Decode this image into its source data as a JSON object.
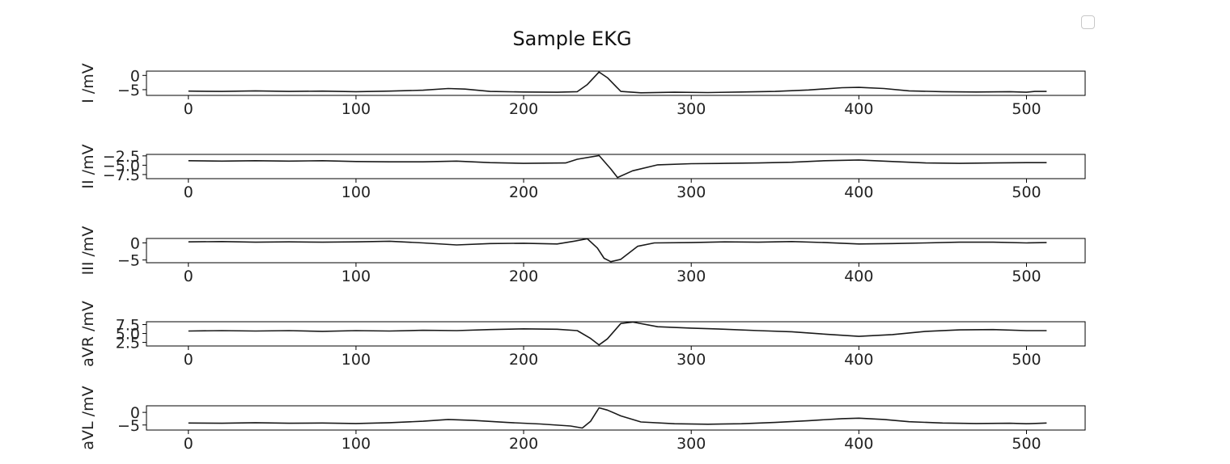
{
  "figure": {
    "title": "Sample EKG",
    "legend_checkbox_checked": false
  },
  "chart_data": [
    {
      "type": "line",
      "name": "I /mV",
      "ylabel": "I /mV",
      "xlim": [
        -25,
        535
      ],
      "ylim": [
        -7,
        1.5
      ],
      "yticks": [
        0,
        -5
      ],
      "ytick_labels": [
        "0",
        "−5"
      ],
      "xticks": [
        0,
        100,
        200,
        300,
        400,
        500
      ],
      "xtick_labels": [
        "0",
        "100",
        "200",
        "300",
        "400",
        "500"
      ],
      "color": "#1a1a1a",
      "points": [
        [
          0,
          -5.5
        ],
        [
          20,
          -5.6
        ],
        [
          40,
          -5.4
        ],
        [
          60,
          -5.6
        ],
        [
          80,
          -5.5
        ],
        [
          100,
          -5.7
        ],
        [
          120,
          -5.5
        ],
        [
          140,
          -5.2
        ],
        [
          155,
          -4.6
        ],
        [
          165,
          -4.8
        ],
        [
          180,
          -5.6
        ],
        [
          200,
          -5.8
        ],
        [
          220,
          -5.9
        ],
        [
          232,
          -5.7
        ],
        [
          238,
          -3.2
        ],
        [
          245,
          1.2
        ],
        [
          250,
          -0.8
        ],
        [
          258,
          -5.6
        ],
        [
          270,
          -6.1
        ],
        [
          290,
          -5.9
        ],
        [
          310,
          -6.0
        ],
        [
          330,
          -5.8
        ],
        [
          350,
          -5.6
        ],
        [
          370,
          -5.1
        ],
        [
          390,
          -4.3
        ],
        [
          400,
          -4.2
        ],
        [
          415,
          -4.6
        ],
        [
          430,
          -5.4
        ],
        [
          450,
          -5.7
        ],
        [
          470,
          -5.8
        ],
        [
          490,
          -5.7
        ],
        [
          500,
          -5.9
        ],
        [
          505,
          -5.6
        ],
        [
          512,
          -5.6
        ]
      ]
    },
    {
      "type": "line",
      "name": "II /mV",
      "ylabel": "II /mV",
      "xlim": [
        -25,
        535
      ],
      "ylim": [
        -8.6,
        -2.1
      ],
      "yticks": [
        -2.5,
        -5.0,
        -7.5
      ],
      "ytick_labels": [
        "−2.5",
        "−5.0",
        "−7.5"
      ],
      "xticks": [
        0,
        100,
        200,
        300,
        400,
        500
      ],
      "xtick_labels": [
        "0",
        "100",
        "200",
        "300",
        "400",
        "500"
      ],
      "color": "#1a1a1a",
      "points": [
        [
          0,
          -3.8
        ],
        [
          20,
          -3.9
        ],
        [
          40,
          -3.8
        ],
        [
          60,
          -3.9
        ],
        [
          80,
          -3.8
        ],
        [
          100,
          -4.0
        ],
        [
          120,
          -4.1
        ],
        [
          140,
          -4.1
        ],
        [
          160,
          -3.9
        ],
        [
          180,
          -4.3
        ],
        [
          200,
          -4.5
        ],
        [
          225,
          -4.4
        ],
        [
          232,
          -3.4
        ],
        [
          245,
          -2.4
        ],
        [
          252,
          -6.0
        ],
        [
          256,
          -8.3
        ],
        [
          265,
          -6.5
        ],
        [
          280,
          -4.9
        ],
        [
          300,
          -4.6
        ],
        [
          320,
          -4.5
        ],
        [
          340,
          -4.4
        ],
        [
          360,
          -4.2
        ],
        [
          380,
          -3.8
        ],
        [
          400,
          -3.6
        ],
        [
          420,
          -4.0
        ],
        [
          440,
          -4.4
        ],
        [
          460,
          -4.5
        ],
        [
          480,
          -4.4
        ],
        [
          500,
          -4.3
        ],
        [
          512,
          -4.3
        ]
      ]
    },
    {
      "type": "line",
      "name": "III /mV",
      "ylabel": "III /mV",
      "xlim": [
        -25,
        535
      ],
      "ylim": [
        -5.8,
        1.3
      ],
      "yticks": [
        0,
        -5
      ],
      "ytick_labels": [
        "0",
        "−5"
      ],
      "xticks": [
        0,
        100,
        200,
        300,
        400,
        500
      ],
      "xtick_labels": [
        "0",
        "100",
        "200",
        "300",
        "400",
        "500"
      ],
      "color": "#1a1a1a",
      "points": [
        [
          0,
          0.3
        ],
        [
          20,
          0.4
        ],
        [
          40,
          0.2
        ],
        [
          60,
          0.3
        ],
        [
          80,
          0.2
        ],
        [
          100,
          0.3
        ],
        [
          120,
          0.5
        ],
        [
          140,
          0.0
        ],
        [
          160,
          -0.6
        ],
        [
          180,
          -0.2
        ],
        [
          200,
          -0.1
        ],
        [
          220,
          -0.3
        ],
        [
          230,
          0.5
        ],
        [
          238,
          1.2
        ],
        [
          244,
          -1.5
        ],
        [
          248,
          -4.5
        ],
        [
          252,
          -5.5
        ],
        [
          258,
          -4.8
        ],
        [
          268,
          -1.0
        ],
        [
          278,
          0.0
        ],
        [
          300,
          0.1
        ],
        [
          320,
          0.3
        ],
        [
          340,
          0.2
        ],
        [
          360,
          0.4
        ],
        [
          380,
          0.1
        ],
        [
          400,
          -0.3
        ],
        [
          420,
          -0.2
        ],
        [
          440,
          0.0
        ],
        [
          460,
          0.2
        ],
        [
          480,
          0.2
        ],
        [
          500,
          0.0
        ],
        [
          512,
          0.1
        ]
      ]
    },
    {
      "type": "line",
      "name": "aVR /mV",
      "ylabel": "aVR /mV",
      "xlim": [
        -25,
        535
      ],
      "ylim": [
        1.5,
        8.3
      ],
      "yticks": [
        7.5,
        5.0,
        2.5
      ],
      "ytick_labels": [
        "7.5",
        "5.0",
        "2.5"
      ],
      "xticks": [
        0,
        100,
        200,
        300,
        400,
        500
      ],
      "xtick_labels": [
        "0",
        "100",
        "200",
        "300",
        "400",
        "500"
      ],
      "color": "#1a1a1a",
      "points": [
        [
          0,
          5.7
        ],
        [
          20,
          5.8
        ],
        [
          40,
          5.7
        ],
        [
          60,
          5.8
        ],
        [
          80,
          5.6
        ],
        [
          100,
          5.8
        ],
        [
          120,
          5.7
        ],
        [
          140,
          5.9
        ],
        [
          160,
          5.8
        ],
        [
          180,
          6.1
        ],
        [
          200,
          6.3
        ],
        [
          220,
          6.2
        ],
        [
          232,
          5.8
        ],
        [
          240,
          3.6
        ],
        [
          245,
          1.8
        ],
        [
          250,
          3.5
        ],
        [
          258,
          7.8
        ],
        [
          265,
          8.2
        ],
        [
          280,
          6.9
        ],
        [
          300,
          6.5
        ],
        [
          320,
          6.2
        ],
        [
          340,
          5.8
        ],
        [
          360,
          5.5
        ],
        [
          380,
          4.8
        ],
        [
          400,
          4.2
        ],
        [
          420,
          4.7
        ],
        [
          440,
          5.6
        ],
        [
          460,
          6.0
        ],
        [
          480,
          6.1
        ],
        [
          500,
          5.8
        ],
        [
          512,
          5.8
        ]
      ]
    },
    {
      "type": "line",
      "name": "aVL /mV",
      "ylabel": "aVL /mV",
      "xlim": [
        -25,
        535
      ],
      "ylim": [
        -7,
        2.6
      ],
      "yticks": [
        0,
        -5
      ],
      "ytick_labels": [
        "0",
        "−5"
      ],
      "xticks": [
        0,
        100,
        200,
        300,
        400,
        500
      ],
      "xtick_labels": [
        "0",
        "100",
        "200",
        "300",
        "400",
        "500"
      ],
      "color": "#1a1a1a",
      "points": [
        [
          0,
          -4.2
        ],
        [
          20,
          -4.3
        ],
        [
          40,
          -4.1
        ],
        [
          60,
          -4.3
        ],
        [
          80,
          -4.2
        ],
        [
          100,
          -4.4
        ],
        [
          120,
          -4.1
        ],
        [
          140,
          -3.5
        ],
        [
          155,
          -2.8
        ],
        [
          170,
          -3.2
        ],
        [
          190,
          -4.0
        ],
        [
          210,
          -4.6
        ],
        [
          228,
          -5.4
        ],
        [
          235,
          -6.2
        ],
        [
          240,
          -3.5
        ],
        [
          245,
          1.8
        ],
        [
          250,
          0.9
        ],
        [
          258,
          -1.4
        ],
        [
          270,
          -3.8
        ],
        [
          290,
          -4.5
        ],
        [
          310,
          -4.7
        ],
        [
          330,
          -4.5
        ],
        [
          350,
          -4.0
        ],
        [
          370,
          -3.3
        ],
        [
          390,
          -2.5
        ],
        [
          400,
          -2.3
        ],
        [
          415,
          -2.8
        ],
        [
          430,
          -3.7
        ],
        [
          450,
          -4.2
        ],
        [
          470,
          -4.4
        ],
        [
          490,
          -4.3
        ],
        [
          500,
          -4.5
        ],
        [
          512,
          -4.2
        ]
      ]
    }
  ]
}
